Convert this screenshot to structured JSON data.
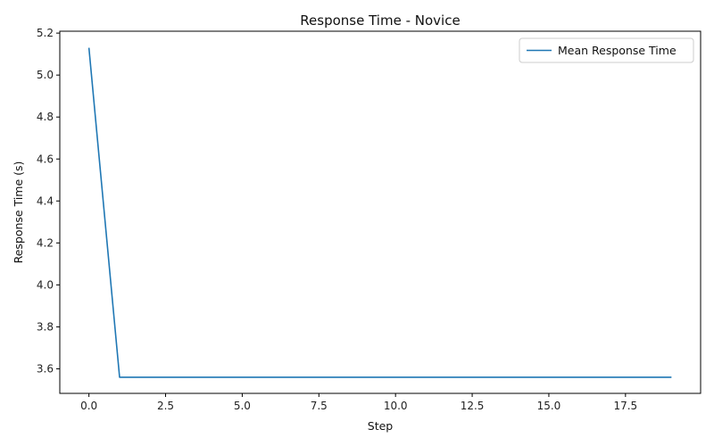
{
  "chart_data": {
    "type": "line",
    "title": "Response Time - Novice",
    "xlabel": "Step",
    "ylabel": "Response Time (s)",
    "xlim": [
      -0.95,
      19.95
    ],
    "ylim": [
      3.483,
      5.209
    ],
    "xticks": [
      0.0,
      2.5,
      5.0,
      7.5,
      10.0,
      12.5,
      15.0,
      17.5
    ],
    "xtick_labels": [
      "0.0",
      "2.5",
      "5.0",
      "7.5",
      "10.0",
      "12.5",
      "15.0",
      "17.5"
    ],
    "yticks": [
      3.6,
      3.8,
      4.0,
      4.2,
      4.4,
      4.6,
      4.8,
      5.0,
      5.2
    ],
    "ytick_labels": [
      "3.6",
      "3.8",
      "4.0",
      "4.2",
      "4.4",
      "4.6",
      "4.8",
      "5.0",
      "5.2"
    ],
    "grid": false,
    "legend_position": "top-right",
    "series": [
      {
        "name": "Mean Response Time",
        "color": "#1f77b4",
        "x": [
          0,
          1,
          2,
          3,
          4,
          5,
          6,
          7,
          8,
          9,
          10,
          11,
          12,
          13,
          14,
          15,
          16,
          17,
          18,
          19
        ],
        "y": [
          5.13,
          3.56,
          3.56,
          3.56,
          3.56,
          3.56,
          3.56,
          3.56,
          3.56,
          3.56,
          3.56,
          3.56,
          3.56,
          3.56,
          3.56,
          3.56,
          3.56,
          3.56,
          3.56,
          3.56
        ]
      }
    ]
  }
}
